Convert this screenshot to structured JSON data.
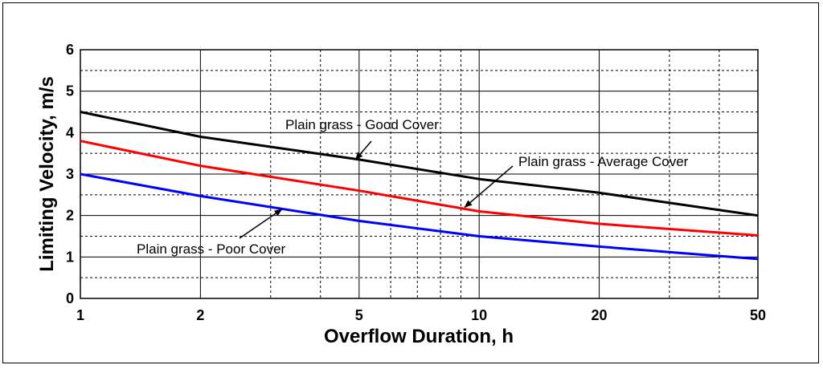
{
  "chart_data": {
    "type": "line",
    "title": "",
    "xlabel": "Overflow Duration, h",
    "ylabel": "Limiting Velocity, m/s",
    "xscale": "log",
    "xlim": [
      1,
      50
    ],
    "ylim": [
      0,
      6
    ],
    "x_ticks": [
      1,
      2,
      5,
      10,
      20,
      50
    ],
    "y_ticks": [
      0,
      1,
      2,
      3,
      4,
      5,
      6
    ],
    "grid": true,
    "series": [
      {
        "name": "Plain grass - Good Cover",
        "color": "#000000",
        "x": [
          1,
          2,
          5,
          10,
          20,
          50
        ],
        "y": [
          4.5,
          3.9,
          3.35,
          2.88,
          2.55,
          2.0
        ]
      },
      {
        "name": "Plain grass - Average Cover",
        "color": "#ff0000",
        "x": [
          1,
          2,
          5,
          10,
          20,
          50
        ],
        "y": [
          3.8,
          3.2,
          2.6,
          2.1,
          1.8,
          1.52
        ]
      },
      {
        "name": "Plain grass - Poor Cover",
        "color": "#0000ff",
        "x": [
          1,
          2,
          5,
          10,
          20,
          50
        ],
        "y": [
          3.0,
          2.47,
          1.87,
          1.5,
          1.25,
          0.95
        ]
      }
    ],
    "annotations": [
      {
        "text": "Plain grass - Good Cover",
        "points_to": {
          "x": 4.9,
          "y": 3.35
        }
      },
      {
        "text": "Plain grass - Average Cover",
        "points_to": {
          "x": 9.2,
          "y": 2.2
        }
      },
      {
        "text": "Plain grass - Poor Cover",
        "points_to": {
          "x": 3.2,
          "y": 2.15
        }
      }
    ]
  }
}
